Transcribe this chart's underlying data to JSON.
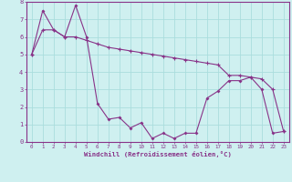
{
  "xlabel": "Windchill (Refroidissement éolien,°C)",
  "background_color": "#cff0f0",
  "grid_color": "#aadddd",
  "line_color": "#883388",
  "series1_x": [
    0,
    1,
    2,
    3,
    4,
    5,
    6,
    7,
    8,
    9,
    10,
    11,
    12,
    13,
    14,
    15,
    16,
    17,
    18,
    19,
    20,
    21,
    22,
    23
  ],
  "series1_y": [
    5.0,
    7.5,
    6.4,
    6.0,
    7.8,
    6.0,
    2.2,
    1.3,
    1.4,
    0.8,
    1.1,
    0.2,
    0.5,
    0.2,
    0.5,
    0.5,
    2.5,
    2.9,
    3.5,
    3.5,
    3.7,
    3.0,
    0.5,
    0.6
  ],
  "series2_x": [
    0,
    1,
    2,
    3,
    4,
    5,
    6,
    7,
    8,
    9,
    10,
    11,
    12,
    13,
    14,
    15,
    16,
    17,
    18,
    19,
    20,
    21,
    22,
    23
  ],
  "series2_y": [
    5.0,
    6.4,
    6.4,
    6.0,
    6.0,
    5.8,
    5.6,
    5.4,
    5.3,
    5.2,
    5.1,
    5.0,
    4.9,
    4.8,
    4.7,
    4.6,
    4.5,
    4.4,
    3.8,
    3.8,
    3.7,
    3.6,
    3.0,
    0.6
  ],
  "ylim": [
    0,
    8
  ],
  "xlim": [
    -0.5,
    23.5
  ],
  "yticks": [
    0,
    1,
    2,
    3,
    4,
    5,
    6,
    7,
    8
  ],
  "xticks": [
    0,
    1,
    2,
    3,
    4,
    5,
    6,
    7,
    8,
    9,
    10,
    11,
    12,
    13,
    14,
    15,
    16,
    17,
    18,
    19,
    20,
    21,
    22,
    23
  ]
}
